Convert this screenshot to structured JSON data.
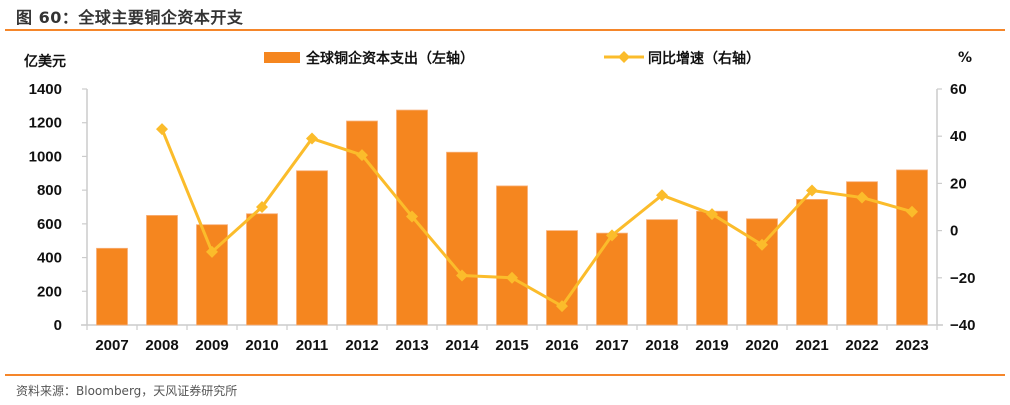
{
  "figure": {
    "title": "图 60：全球主要铜企资本开支",
    "source": "资料来源：Bloomberg，天风证券研究所"
  },
  "colors": {
    "bar": "#f5861f",
    "line": "#fbbc2b",
    "rule": "#f5862a",
    "axis": "#cccccc"
  },
  "chart_data": {
    "type": "bar+line",
    "title": "全球主要铜企资本开支",
    "categories": [
      "2007",
      "2008",
      "2009",
      "2010",
      "2011",
      "2012",
      "2013",
      "2014",
      "2015",
      "2016",
      "2017",
      "2018",
      "2019",
      "2020",
      "2021",
      "2022",
      "2023"
    ],
    "series": [
      {
        "name": "全球铜企资本支出（左轴）",
        "type": "bar",
        "axis": "left",
        "values": [
          455,
          650,
          595,
          660,
          915,
          1210,
          1275,
          1025,
          825,
          560,
          545,
          625,
          675,
          630,
          745,
          850,
          920
        ]
      },
      {
        "name": "同比增速（右轴）",
        "type": "line",
        "axis": "right",
        "marker": "diamond",
        "values": [
          null,
          43,
          -9,
          10,
          39,
          32,
          6,
          -19,
          -20,
          -32,
          -2,
          15,
          7,
          -6,
          17,
          14,
          8
        ]
      }
    ],
    "left_axis": {
      "label": "亿美元",
      "ylim": [
        0,
        1400
      ],
      "ticks": [
        "0",
        "200",
        "400",
        "600",
        "800",
        "1000",
        "1200",
        "1400"
      ]
    },
    "right_axis": {
      "label": "%",
      "ylim": [
        -40,
        60
      ],
      "ticks": [
        "-40",
        "-20",
        "0",
        "20",
        "40",
        "60"
      ]
    },
    "legend_position": "top",
    "grid": false
  }
}
